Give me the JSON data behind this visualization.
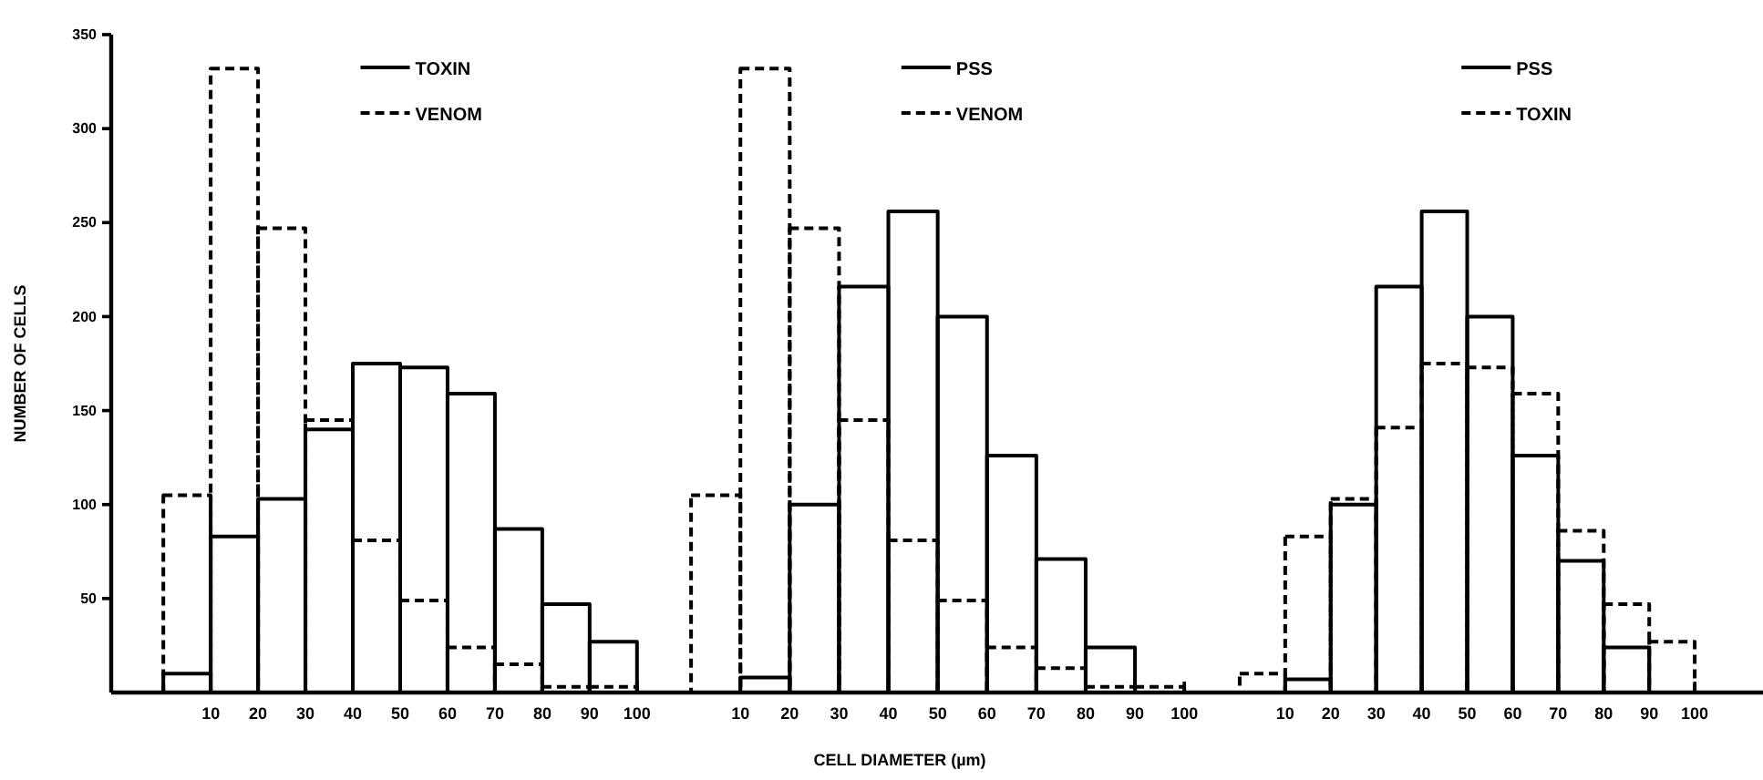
{
  "chart_data": [
    {
      "type": "histogram",
      "ylabel": "NUMBER OF CELLS",
      "bins": [
        0,
        10,
        20,
        30,
        40,
        50,
        60,
        70,
        80,
        90,
        100
      ],
      "xlim": [
        -11,
        101
      ],
      "ylim": [
        0,
        350
      ],
      "xticks": [
        10,
        20,
        30,
        40,
        50,
        60,
        70,
        80,
        90,
        100
      ],
      "yticks": [
        50,
        100,
        150,
        200,
        250,
        300,
        350
      ],
      "legend": "top",
      "grid": false,
      "series": [
        {
          "name": "TOXIN",
          "color": "#000000",
          "line_style": "solid",
          "values": [
            10,
            83,
            103,
            140,
            175,
            173,
            159,
            87,
            47,
            27
          ]
        },
        {
          "name": "VENOM",
          "color": "#000000",
          "line_style": "dashed",
          "values": [
            105,
            332,
            247,
            145,
            81,
            49,
            24,
            15,
            3,
            3
          ]
        }
      ]
    },
    {
      "type": "histogram",
      "xlabel": "CELL DIAMETER (µm)",
      "bins": [
        0,
        10,
        20,
        30,
        40,
        50,
        60,
        70,
        80,
        90,
        100
      ],
      "xlim": [
        -10,
        102
      ],
      "ylim": [
        0,
        350
      ],
      "xticks": [
        10,
        20,
        30,
        40,
        50,
        60,
        70,
        80,
        90,
        100
      ],
      "tick_labels": "x",
      "legend": "top",
      "grid": false,
      "series": [
        {
          "name": "PSS",
          "color": "#000000",
          "line_style": "solid",
          "values": [
            0,
            8,
            100,
            216,
            256,
            200,
            126,
            71,
            24,
            0
          ]
        },
        {
          "name": "VENOM",
          "color": "#000000",
          "line_style": "dashed",
          "values": [
            105,
            332,
            247,
            145,
            81,
            49,
            24,
            13,
            3,
            3
          ]
        }
      ]
    },
    {
      "type": "histogram",
      "bins": [
        0,
        10,
        20,
        30,
        40,
        50,
        60,
        70,
        80,
        90,
        100
      ],
      "xlim": [
        -10,
        115
      ],
      "ylim": [
        0,
        350
      ],
      "xticks": [
        10,
        20,
        30,
        40,
        50,
        60,
        70,
        80,
        90,
        100
      ],
      "tick_labels": "x",
      "legend": "top",
      "grid": false,
      "series": [
        {
          "name": "PSS",
          "color": "#000000",
          "line_style": "solid",
          "values": [
            0,
            7,
            100,
            216,
            256,
            200,
            126,
            70,
            24,
            0
          ]
        },
        {
          "name": "TOXIN",
          "color": "#000000",
          "line_style": "dashed",
          "values": [
            10,
            83,
            103,
            141,
            175,
            173,
            159,
            86,
            47,
            27
          ]
        }
      ]
    }
  ]
}
